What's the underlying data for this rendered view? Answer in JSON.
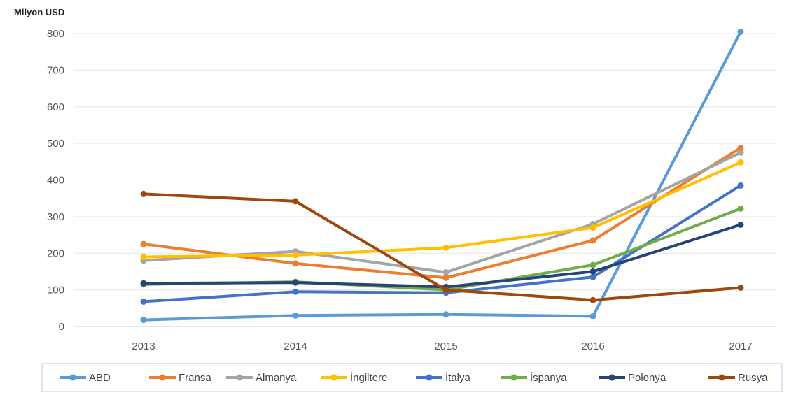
{
  "chart_data": {
    "type": "line",
    "ylabel": "Milyon USD",
    "xlabel": "",
    "title": "",
    "categories": [
      "2013",
      "2014",
      "2015",
      "2016",
      "2017"
    ],
    "ylim": [
      0,
      800
    ],
    "yticks": [
      0,
      100,
      200,
      300,
      400,
      500,
      600,
      700,
      800
    ],
    "grid": true,
    "legend": "bottom",
    "series": [
      {
        "name": "ABD",
        "color": "#5B9BD5",
        "values": [
          18,
          30,
          33,
          28,
          805
        ]
      },
      {
        "name": "Fransa",
        "color": "#ED7D31",
        "values": [
          225,
          172,
          133,
          235,
          488
        ]
      },
      {
        "name": "Almanya",
        "color": "#A5A5A5",
        "values": [
          180,
          205,
          148,
          280,
          475
        ]
      },
      {
        "name": "İngiltere",
        "color": "#FFC000",
        "values": [
          190,
          195,
          215,
          270,
          448
        ]
      },
      {
        "name": "İtalya",
        "color": "#4472C4",
        "values": [
          68,
          95,
          92,
          135,
          385
        ]
      },
      {
        "name": "İspanya",
        "color": "#70AD47",
        "values": [
          115,
          122,
          100,
          168,
          322
        ]
      },
      {
        "name": "Polonya",
        "color": "#264478",
        "values": [
          118,
          120,
          108,
          150,
          278
        ]
      },
      {
        "name": "Rusya",
        "color": "#9E480E",
        "values": [
          362,
          342,
          100,
          72,
          106
        ]
      }
    ]
  }
}
